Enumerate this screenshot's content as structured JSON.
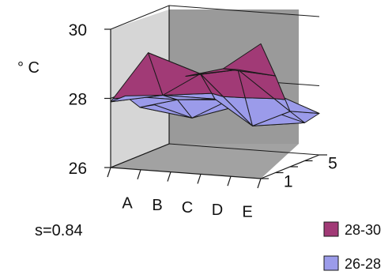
{
  "chart_data": {
    "type": "surface",
    "title": "",
    "ylabel": "° C",
    "x_categories": [
      "A",
      "B",
      "C",
      "D",
      "E"
    ],
    "depth_categories": [
      "1",
      "",
      "",
      "",
      "5"
    ],
    "depth_tick_labels": [
      "1",
      "5"
    ],
    "z_range": [
      26,
      30
    ],
    "z_ticks": [
      "26",
      "28",
      "30"
    ],
    "grid": true,
    "legend_position": "bottom-right",
    "bands": [
      {
        "label": "28-30",
        "color": "#a13a76"
      },
      {
        "label": "26-28",
        "color": "#9b9bea"
      }
    ],
    "annotation": "s=0.84",
    "surface": [
      [
        27.9,
        29.4,
        28.8,
        29.1,
        29.9
      ],
      [
        27.9,
        28.0,
        28.7,
        28.9,
        28.8
      ],
      [
        27.4,
        27.7,
        27.8,
        27.1,
        27.6
      ],
      [
        27.3,
        27.0,
        27.6,
        27.4,
        27.1
      ],
      [
        27.3,
        27.6,
        27.3,
        27.6,
        27.2
      ]
    ]
  }
}
